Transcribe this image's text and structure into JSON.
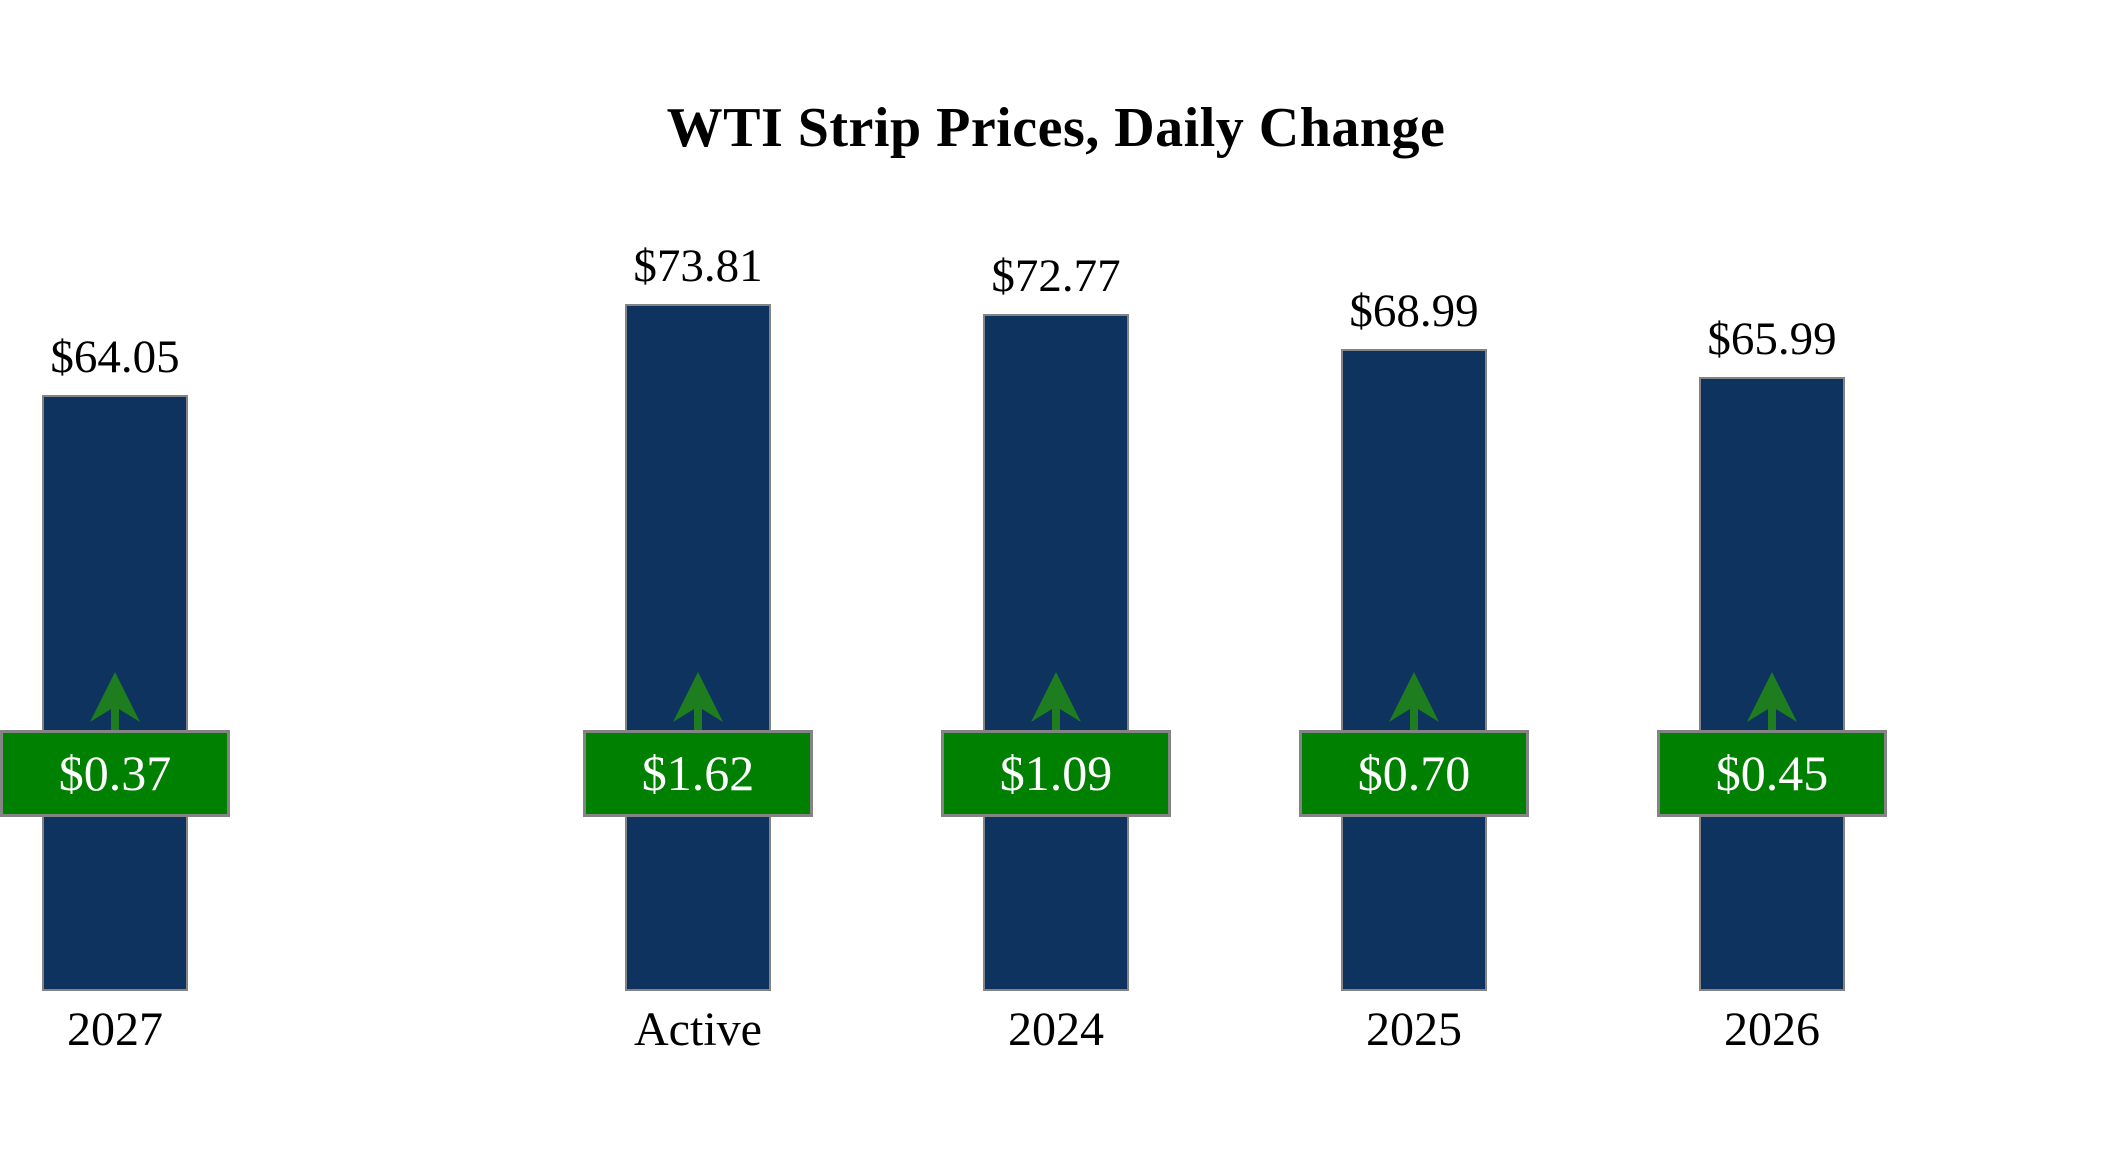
{
  "chart_data": {
    "type": "bar",
    "title": "WTI Strip Prices, Daily Change",
    "categories": [
      "Active",
      "2024",
      "2025",
      "2026",
      "2027"
    ],
    "series": [
      {
        "name": "Strip Price",
        "values": [
          73.81,
          72.77,
          68.99,
          65.99,
          64.05
        ]
      },
      {
        "name": "Daily Change",
        "values": [
          1.62,
          1.09,
          0.7,
          0.45,
          0.37
        ]
      }
    ],
    "ylim": [
      0,
      78
    ],
    "grid": false,
    "legend": "none",
    "direction_indicator": "up-arrow",
    "columns": [
      {
        "category": "Active",
        "price_label": "$73.81",
        "change_label": "$1.62"
      },
      {
        "category": "2024",
        "price_label": "$72.77",
        "change_label": "$1.09"
      },
      {
        "category": "2025",
        "price_label": "$68.99",
        "change_label": "$0.70"
      },
      {
        "category": "2026",
        "price_label": "$65.99",
        "change_label": "$0.45"
      },
      {
        "category": "2027",
        "price_label": "$64.05",
        "change_label": "$0.37"
      }
    ],
    "colors": {
      "background": "#ffffff",
      "bar": "#0e335f",
      "bar_border": "#848484",
      "badge": "#008000",
      "badge_border": "#848484",
      "arrow": "#1e7d1e",
      "badge_text": "#ffffff",
      "text": "#000000"
    }
  }
}
